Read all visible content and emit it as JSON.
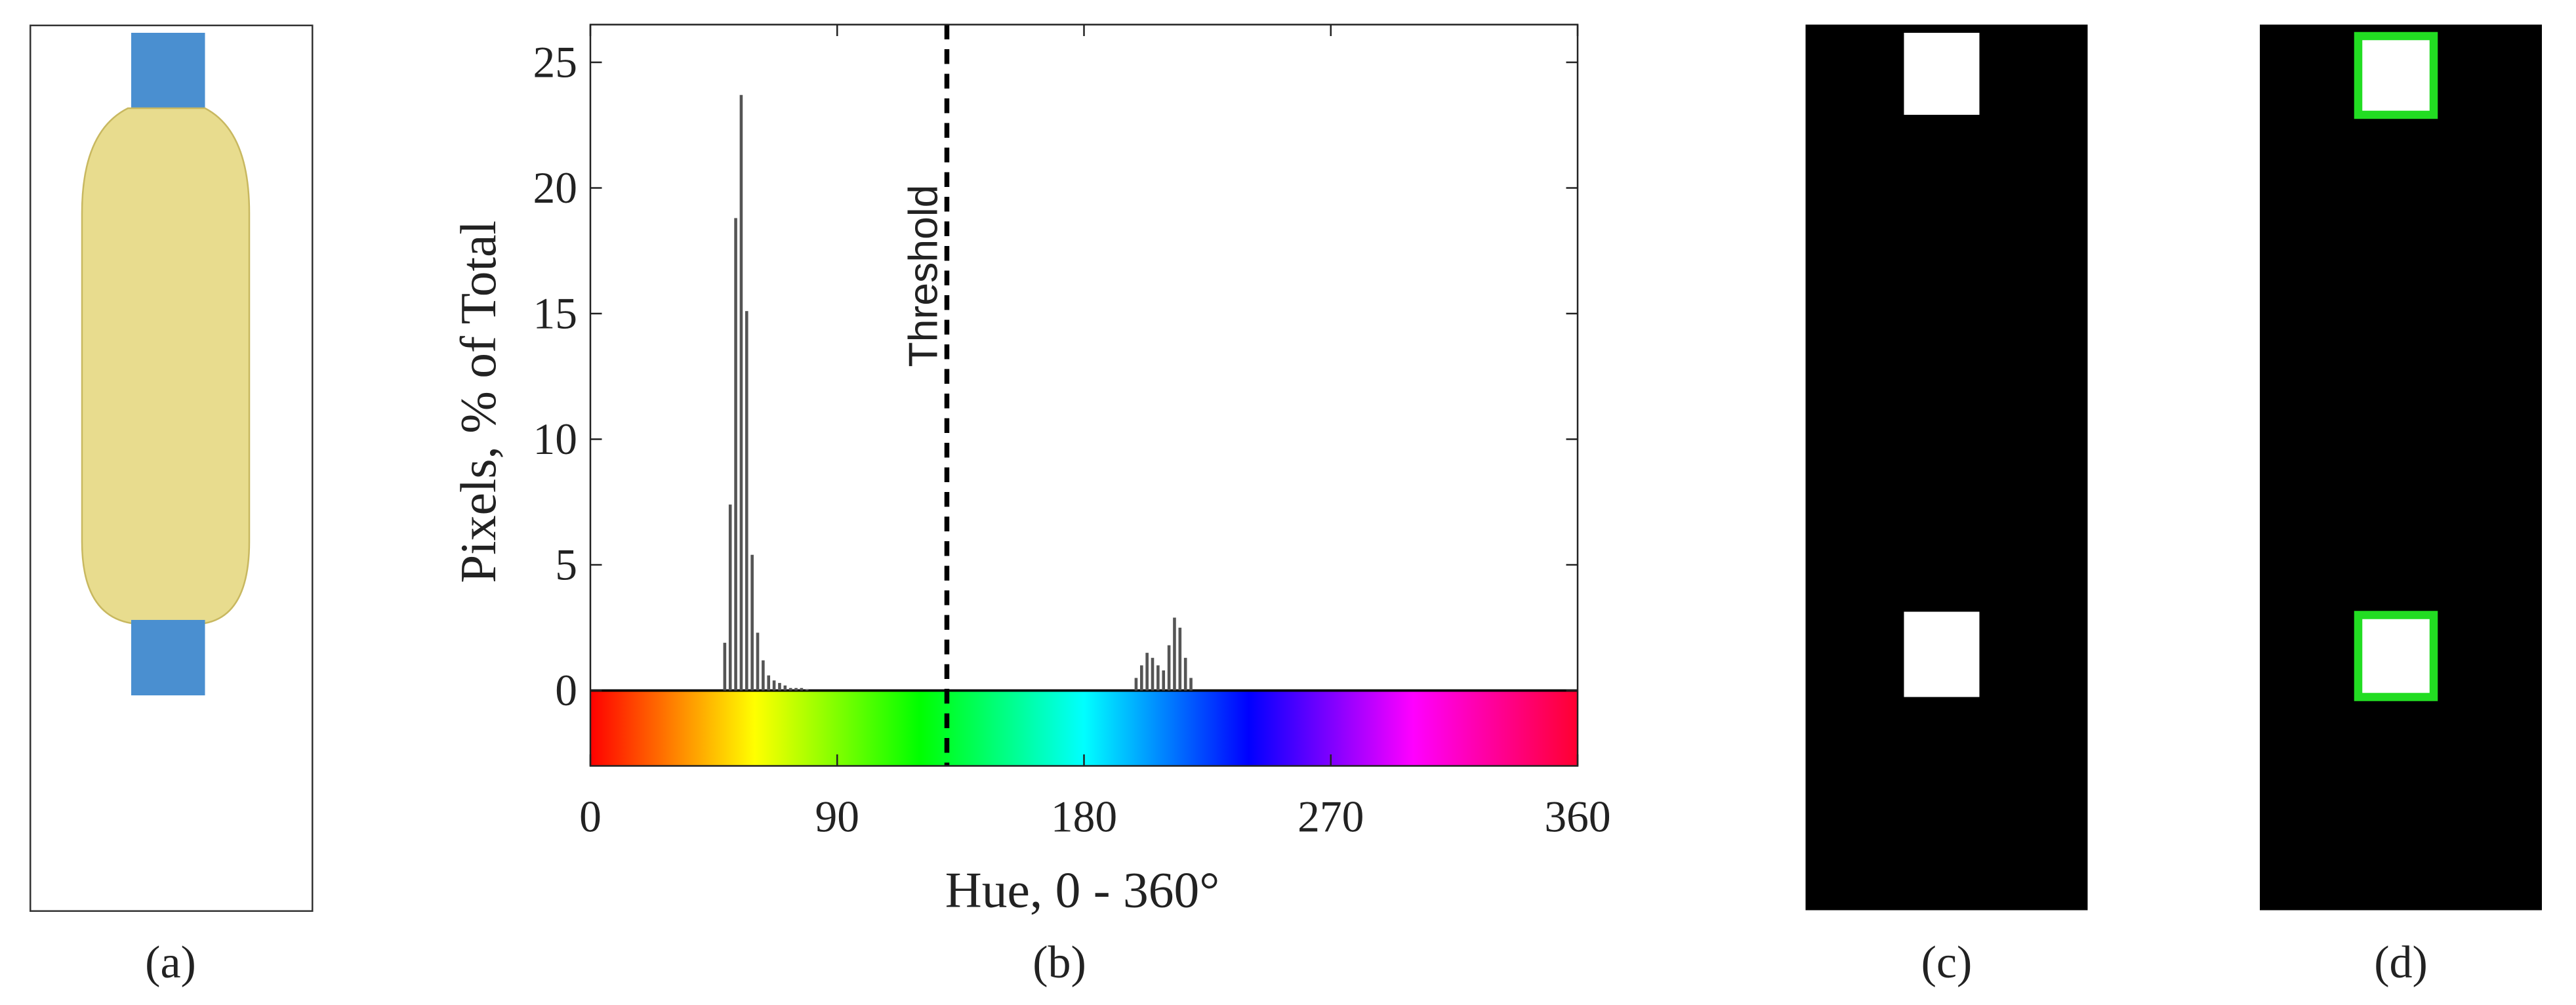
{
  "chart_data": {
    "type": "histogram",
    "ylabel": "Pixels, % of Total",
    "xlabel": "Hue, 0 - 360°",
    "annotation": "Threshold",
    "threshold": 130,
    "color": "#555555",
    "xlim": [
      0,
      360
    ],
    "xticks": [
      0,
      90,
      180,
      270,
      360
    ],
    "ylim": [
      -3,
      26.5
    ],
    "yticks": [
      0,
      5,
      10,
      15,
      20,
      25
    ],
    "bins": [
      48,
      50,
      52,
      54,
      56,
      58,
      60,
      62,
      64,
      66,
      68,
      70,
      72,
      74,
      76,
      78,
      80,
      82,
      84,
      86,
      88,
      90,
      92,
      94,
      96,
      98,
      100,
      102,
      104,
      106,
      108,
      110,
      112,
      114,
      116,
      118,
      120,
      122,
      124,
      126,
      128,
      130,
      132,
      134,
      136,
      138,
      140,
      142,
      144,
      146,
      148,
      150,
      152,
      154,
      156,
      158,
      160,
      162,
      164,
      166,
      168,
      170,
      172,
      174,
      176,
      178,
      180,
      182,
      184,
      186,
      188,
      190,
      192,
      194,
      196,
      198,
      200,
      202,
      204,
      206,
      208,
      210,
      212,
      214,
      216,
      218,
      220
    ],
    "counts": [
      1.9,
      7.4,
      18.8,
      23.7,
      15.1,
      5.4,
      2.3,
      1.2,
      0.6,
      0.4,
      0.3,
      0.2,
      0.1,
      0.1,
      0.1,
      0.05,
      0,
      0,
      0,
      0,
      0,
      0,
      0,
      0,
      0,
      0,
      0,
      0,
      0,
      0,
      0,
      0,
      0,
      0,
      0,
      0,
      0,
      0,
      0,
      0,
      0,
      0,
      0,
      0,
      0,
      0,
      0,
      0,
      0,
      0,
      0,
      0,
      0,
      0,
      0,
      0,
      0,
      0,
      0,
      0,
      0,
      0,
      0,
      0,
      0,
      0,
      0,
      0,
      0,
      0,
      0,
      0,
      0,
      0,
      0,
      0.5,
      1.0,
      1.5,
      1.3,
      1.0,
      0.8,
      1.8,
      2.9,
      2.5,
      1.3,
      0.5
    ]
  },
  "panel_labels": [
    "(a)",
    "(b)",
    "(c)",
    "(d)"
  ]
}
